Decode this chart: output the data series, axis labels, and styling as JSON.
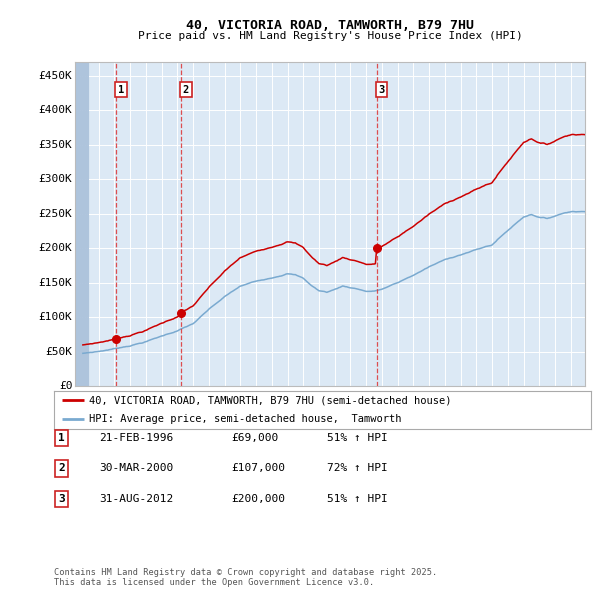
{
  "title": "40, VICTORIA ROAD, TAMWORTH, B79 7HU",
  "subtitle": "Price paid vs. HM Land Registry's House Price Index (HPI)",
  "ylim": [
    0,
    470000
  ],
  "yticks": [
    0,
    50000,
    100000,
    150000,
    200000,
    250000,
    300000,
    350000,
    400000,
    450000
  ],
  "ytick_labels": [
    "£0",
    "£50K",
    "£100K",
    "£150K",
    "£200K",
    "£250K",
    "£300K",
    "£350K",
    "£400K",
    "£450K"
  ],
  "x_start_year": 1994,
  "x_end_year": 2025,
  "bg_color": "#dce9f5",
  "grid_color": "#ffffff",
  "sale_year_floats": [
    1996.12,
    2000.25,
    2012.67
  ],
  "sale_prices": [
    69000,
    107000,
    200000
  ],
  "sale_labels": [
    "1",
    "2",
    "3"
  ],
  "legend_line1": "40, VICTORIA ROAD, TAMWORTH, B79 7HU (semi-detached house)",
  "legend_line2": "HPI: Average price, semi-detached house,  Tamworth",
  "table_rows": [
    [
      "1",
      "21-FEB-1996",
      "£69,000",
      "51% ↑ HPI"
    ],
    [
      "2",
      "30-MAR-2000",
      "£107,000",
      "72% ↑ HPI"
    ],
    [
      "3",
      "31-AUG-2012",
      "£200,000",
      "51% ↑ HPI"
    ]
  ],
  "footer": "Contains HM Land Registry data © Crown copyright and database right 2025.\nThis data is licensed under the Open Government Licence v3.0.",
  "red_line_color": "#cc0000",
  "blue_line_color": "#7aaad0"
}
